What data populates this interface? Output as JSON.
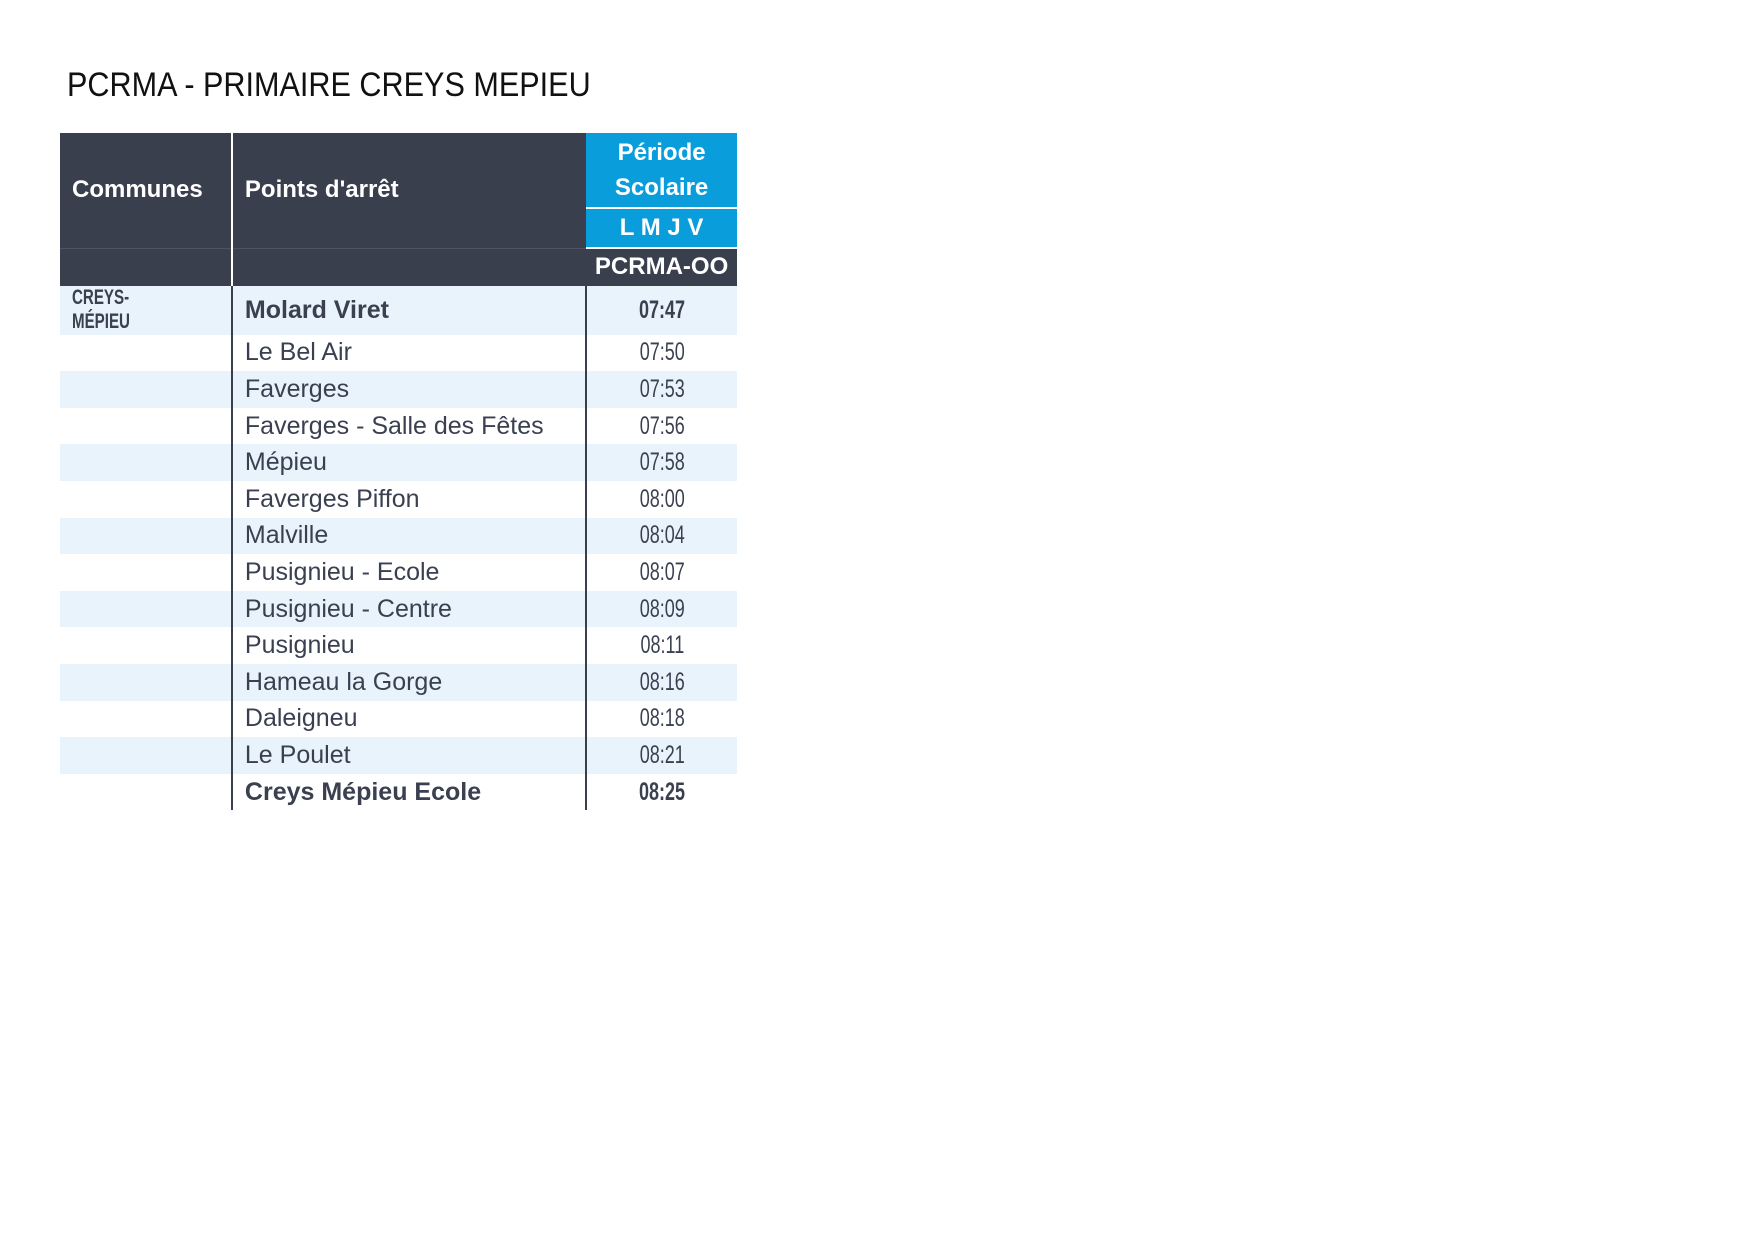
{
  "title": "PCRMA - PRIMAIRE CREYS MEPIEU",
  "header": {
    "communes": "Communes",
    "points": "Points d'arrêt",
    "periode": "Période Scolaire",
    "days": "L M J V",
    "course": "PCRMA-OO"
  },
  "colors": {
    "header_bg": "#3a3f4e",
    "accent": "#0a9ddb",
    "row_alt": "#e8f3fc"
  },
  "rows": [
    {
      "commune": "CREYS-MÉPIEU",
      "stop": "Molard Viret",
      "time": "07:47",
      "bold": true
    },
    {
      "commune": "",
      "stop": "Le Bel Air",
      "time": "07:50"
    },
    {
      "commune": "",
      "stop": "Faverges",
      "time": "07:53"
    },
    {
      "commune": "",
      "stop": "Faverges - Salle des Fêtes",
      "time": "07:56"
    },
    {
      "commune": "",
      "stop": "Mépieu",
      "time": "07:58"
    },
    {
      "commune": "",
      "stop": "Faverges Piffon",
      "time": "08:00"
    },
    {
      "commune": "",
      "stop": "Malville",
      "time": "08:04"
    },
    {
      "commune": "",
      "stop": "Pusignieu - Ecole",
      "time": "08:07"
    },
    {
      "commune": "",
      "stop": "Pusignieu - Centre",
      "time": "08:09"
    },
    {
      "commune": "",
      "stop": "Pusignieu",
      "time": "08:11"
    },
    {
      "commune": "",
      "stop": "Hameau la Gorge",
      "time": "08:16"
    },
    {
      "commune": "",
      "stop": "Daleigneu",
      "time": "08:18"
    },
    {
      "commune": "",
      "stop": "Le Poulet",
      "time": "08:21"
    },
    {
      "commune": "",
      "stop": "Creys Mépieu Ecole",
      "time": "08:25",
      "bold": true
    }
  ]
}
